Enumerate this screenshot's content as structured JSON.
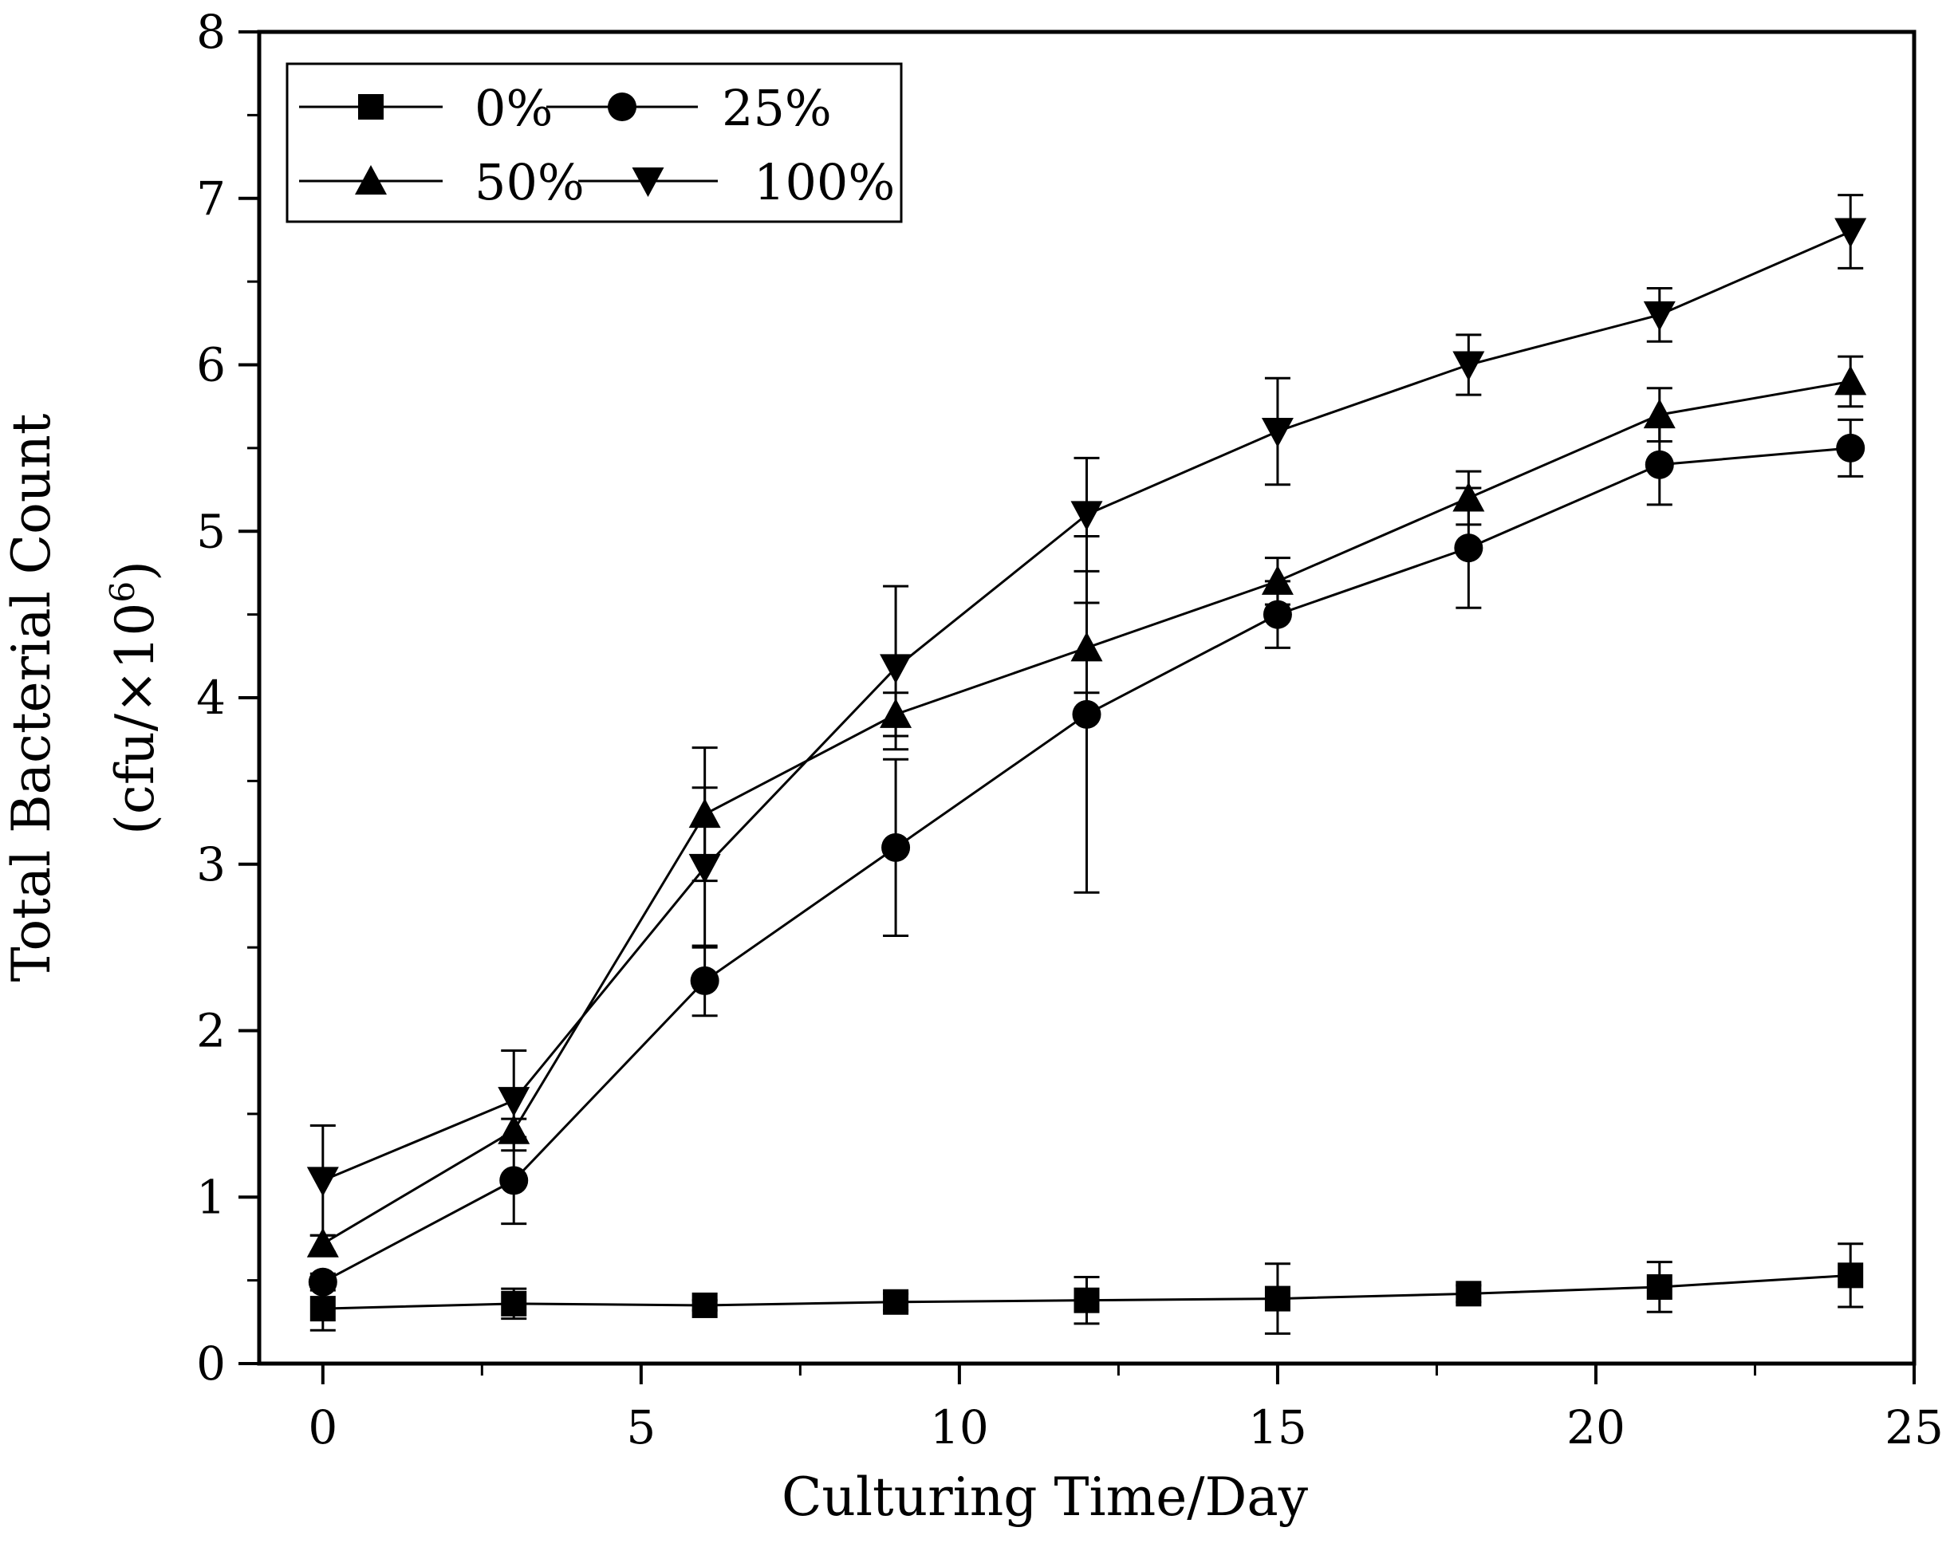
{
  "chart_data": {
    "type": "line",
    "xlabel": "Culturing Time/Day",
    "ylabel_line1": "Total Bacterial Count",
    "ylabel_line2_prefix": "(cfu/×10",
    "ylabel_superscript": "6",
    "ylabel_line2_suffix": ")",
    "xlim": [
      -1,
      25
    ],
    "ylim": [
      0,
      8
    ],
    "x_ticks": [
      0,
      5,
      10,
      15,
      20,
      25
    ],
    "x_tick_labels": [
      "0",
      "5",
      "10",
      "15",
      "20",
      "25"
    ],
    "y_ticks": [
      0,
      1,
      2,
      3,
      4,
      5,
      6,
      7,
      8
    ],
    "y_tick_labels": [
      "0",
      "1",
      "2",
      "3",
      "4",
      "5",
      "6",
      "7",
      "8"
    ],
    "legend_position": "top-left",
    "x": [
      0,
      3,
      6,
      9,
      12,
      15,
      18,
      21,
      24
    ],
    "series": [
      {
        "name": "0%",
        "marker": "square",
        "values": [
          0.33,
          0.36,
          0.35,
          0.37,
          0.38,
          0.39,
          0.42,
          0.46,
          0.53
        ],
        "errors": [
          0.13,
          0.09,
          0.03,
          0.05,
          0.14,
          0.21,
          0.05,
          0.15,
          0.19
        ]
      },
      {
        "name": "25%",
        "marker": "circle",
        "values": [
          0.49,
          1.1,
          2.3,
          3.1,
          3.9,
          4.5,
          4.9,
          5.4,
          5.5
        ],
        "errors": [
          0.05,
          0.26,
          0.21,
          0.53,
          1.07,
          0.2,
          0.36,
          0.24,
          0.17
        ]
      },
      {
        "name": "50%",
        "marker": "triangle-up",
        "values": [
          0.72,
          1.4,
          3.3,
          3.9,
          4.3,
          4.7,
          5.2,
          5.7,
          5.9
        ],
        "errors": [
          0.05,
          0.07,
          0.4,
          0.13,
          0.27,
          0.14,
          0.16,
          0.16,
          0.15
        ]
      },
      {
        "name": "100%",
        "marker": "triangle-down",
        "values": [
          1.1,
          1.58,
          2.98,
          4.18,
          5.1,
          5.6,
          6.0,
          6.3,
          6.8
        ],
        "errors": [
          0.33,
          0.3,
          0.48,
          0.49,
          0.34,
          0.32,
          0.18,
          0.16,
          0.22
        ]
      }
    ]
  }
}
